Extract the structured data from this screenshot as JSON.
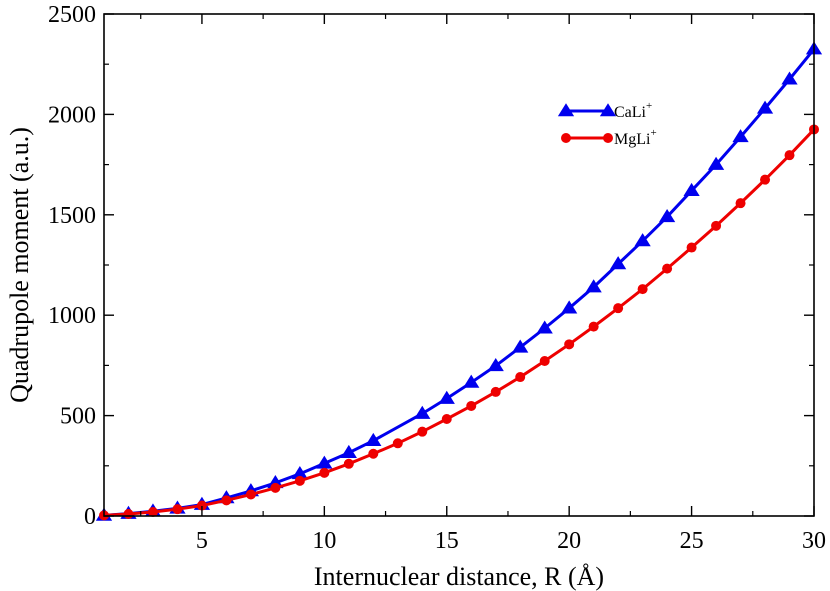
{
  "chart_data": {
    "type": "line",
    "xlabel": "Internuclear distance, R (Å)",
    "ylabel": "Quadrupole moment (a.u.)",
    "xlim": [
      1,
      30
    ],
    "ylim": [
      0,
      2500
    ],
    "xticks": [
      5,
      10,
      15,
      20,
      25,
      30
    ],
    "yticks": [
      0,
      500,
      1000,
      1500,
      2000,
      2500
    ],
    "xtick_labels": [
      "5",
      "10",
      "15",
      "20",
      "25",
      "30"
    ],
    "ytick_labels": [
      "0",
      "500",
      "1000",
      "1500",
      "2000",
      "2500"
    ],
    "legend_position": "top-right",
    "series": [
      {
        "name": "CaLi",
        "sup": "+",
        "color": "#0000ee",
        "marker": "triangle",
        "x": [
          1,
          2,
          3,
          4,
          5,
          6,
          7,
          8,
          9,
          10,
          11,
          12,
          14,
          15,
          16,
          17,
          18,
          19,
          20,
          21,
          22,
          23,
          24,
          25,
          26,
          27,
          28,
          29,
          30
        ],
        "y": [
          3,
          12,
          24,
          38,
          57,
          90,
          125,
          165,
          210,
          262,
          315,
          375,
          510,
          585,
          665,
          748,
          840,
          935,
          1035,
          1140,
          1255,
          1370,
          1490,
          1620,
          1750,
          1888,
          2030,
          2175,
          2325
        ]
      },
      {
        "name": "MgLi",
        "sup": "+",
        "color": "#ee0000",
        "marker": "circle",
        "x": [
          1,
          2,
          3,
          4,
          5,
          6,
          7,
          8,
          9,
          10,
          11,
          12,
          13,
          14,
          15,
          16,
          17,
          18,
          19,
          20,
          21,
          22,
          23,
          24,
          25,
          26,
          27,
          28,
          29,
          30
        ],
        "y": [
          3,
          10,
          20,
          34,
          52,
          78,
          107,
          140,
          175,
          215,
          260,
          310,
          362,
          420,
          483,
          548,
          618,
          692,
          772,
          855,
          943,
          1035,
          1130,
          1232,
          1337,
          1445,
          1558,
          1675,
          1797,
          1925
        ]
      }
    ]
  }
}
